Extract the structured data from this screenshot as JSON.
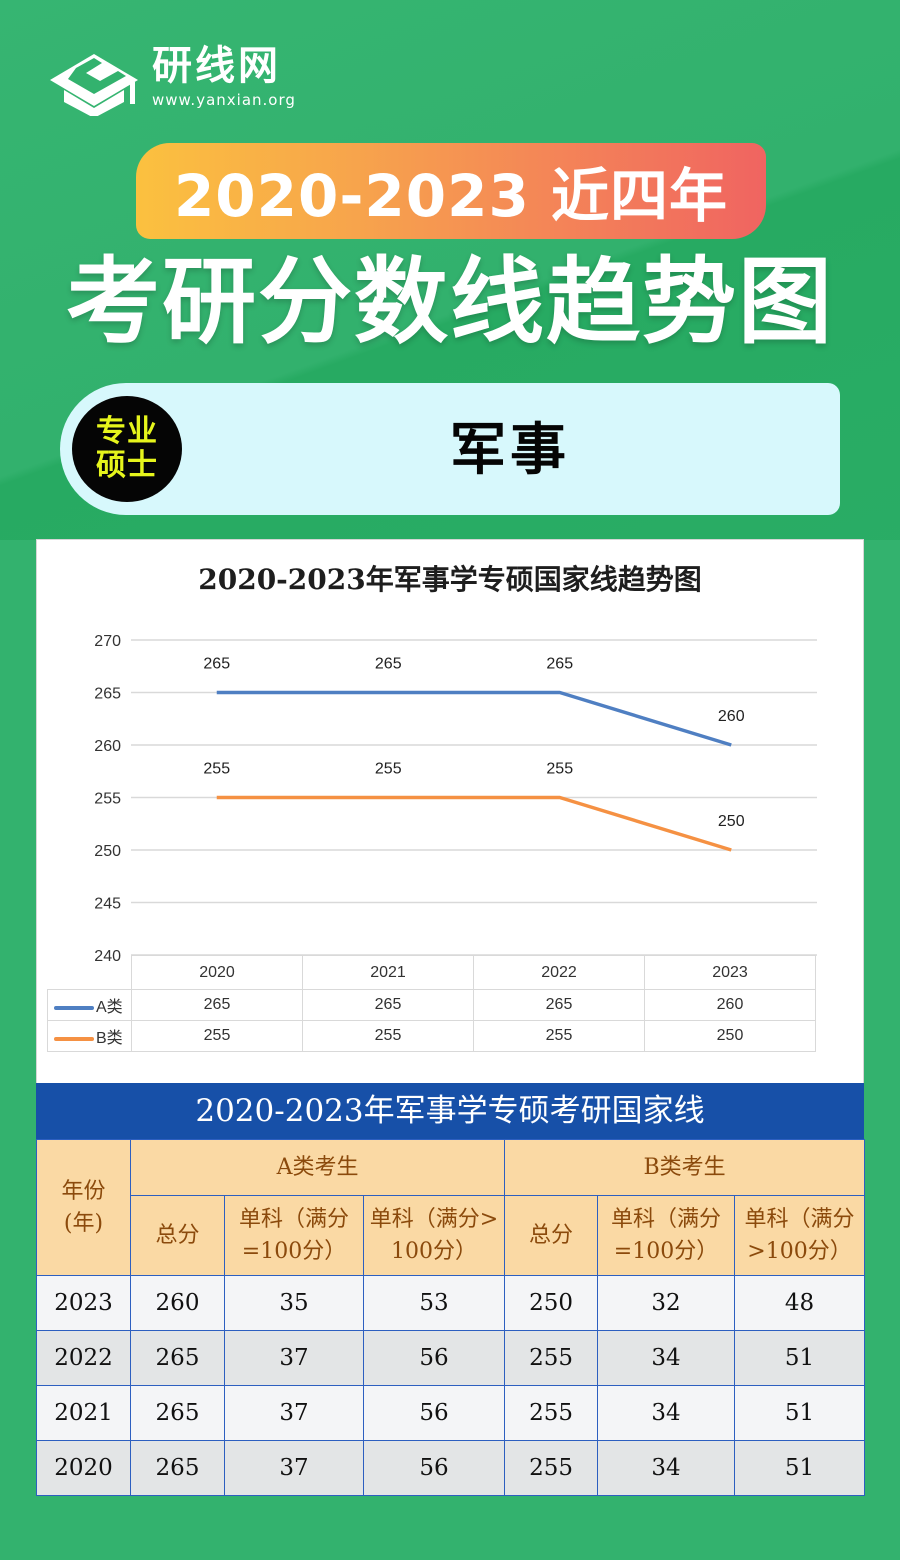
{
  "brand": {
    "name": "研线网",
    "url": "www.yanxian.org",
    "logo_icon": "graduation-cap-icon"
  },
  "banner": {
    "year_range": "2020-2023 近四年",
    "title": "考研分数线趋势图"
  },
  "subject": {
    "badge_line1": "专业",
    "badge_line2": "硕士",
    "name": "军事"
  },
  "colors": {
    "background": "#33b26e",
    "series_a": "#4f7fc2",
    "series_b": "#f59143",
    "table_title_bg": "#1750a8",
    "table_header_bg": "#fad9a4"
  },
  "chart_data": {
    "type": "line",
    "title": "2020-2023年军事学专硕国家线趋势图",
    "categories": [
      "2020",
      "2021",
      "2022",
      "2023"
    ],
    "series": [
      {
        "name": "A类",
        "values": [
          265,
          265,
          265,
          260
        ],
        "color": "#4f7fc2"
      },
      {
        "name": "B类",
        "values": [
          255,
          255,
          255,
          250
        ],
        "color": "#f59143"
      }
    ],
    "xlabel": "",
    "ylabel": "",
    "ylim": [
      240,
      270
    ],
    "yticks": [
      "270",
      "265",
      "260",
      "255",
      "250",
      "245",
      "240"
    ],
    "grid": true,
    "data_labels": true,
    "legend_position": "data-table"
  },
  "score_table": {
    "title": "2020-2023年军事学专硕考研国家线",
    "year_header": "年份（年）",
    "year_header_l1": "年份",
    "year_header_l2": "(年)",
    "group_a": "A类考生",
    "group_b": "B类考生",
    "col_total": "总分",
    "col_single_100_l1": "单科（满分",
    "col_single_100_l2": "=100分）",
    "col_single_gt100_a_l1": "单科（满分>",
    "col_single_gt100_a_l2": "100分）",
    "col_single_gt100_b_l1": "单科（满分",
    "col_single_gt100_b_l2": ">100分）",
    "rows": [
      {
        "year": "2023",
        "a_total": "260",
        "a_s100": "35",
        "a_sgt100": "53",
        "b_total": "250",
        "b_s100": "32",
        "b_sgt100": "48"
      },
      {
        "year": "2022",
        "a_total": "265",
        "a_s100": "37",
        "a_sgt100": "56",
        "b_total": "255",
        "b_s100": "34",
        "b_sgt100": "51"
      },
      {
        "year": "2021",
        "a_total": "265",
        "a_s100": "37",
        "a_sgt100": "56",
        "b_total": "255",
        "b_s100": "34",
        "b_sgt100": "51"
      },
      {
        "year": "2020",
        "a_total": "265",
        "a_s100": "37",
        "a_sgt100": "56",
        "b_total": "255",
        "b_s100": "34",
        "b_sgt100": "51"
      }
    ]
  }
}
